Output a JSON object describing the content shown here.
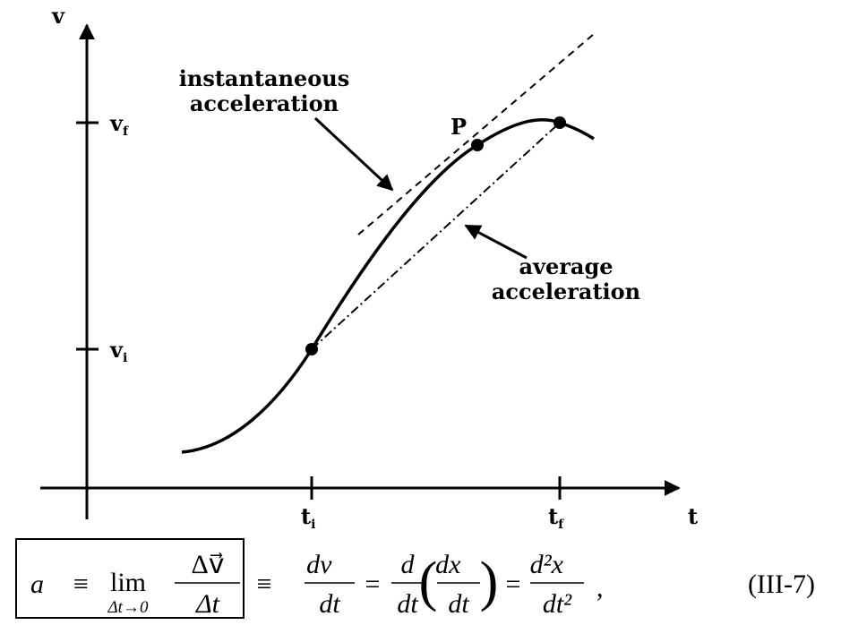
{
  "axes": {
    "y_label": "v",
    "x_label": "t"
  },
  "ticks": {
    "v_f": {
      "main": "v",
      "sub": "f"
    },
    "v_i": {
      "main": "v",
      "sub": "i"
    },
    "t_i": {
      "main": "t",
      "sub": "i"
    },
    "t_f": {
      "main": "t",
      "sub": "f"
    }
  },
  "point_label": "P",
  "annotations": {
    "instantaneous": [
      "instantaneous",
      "acceleration"
    ],
    "average": [
      "average",
      "acceleration"
    ]
  },
  "equation": {
    "boxed": {
      "lhs": "a⃗ ≡",
      "lim": "lim",
      "lim_sub": "Δt→0",
      "num": "Δv⃗",
      "den": "Δt"
    },
    "eq1": "≡",
    "f1": {
      "num": "dv⃗",
      "den": "dt"
    },
    "eq2": "=",
    "f2": {
      "num": "d",
      "den": "dt"
    },
    "open": "(",
    "f3": {
      "num": "dx⃗",
      "den": "dt"
    },
    "close": ")",
    "eq3": "=",
    "f4": {
      "num": "d²x⃗",
      "den": "dt²"
    },
    "comma": ",",
    "number": "(III-7)"
  }
}
